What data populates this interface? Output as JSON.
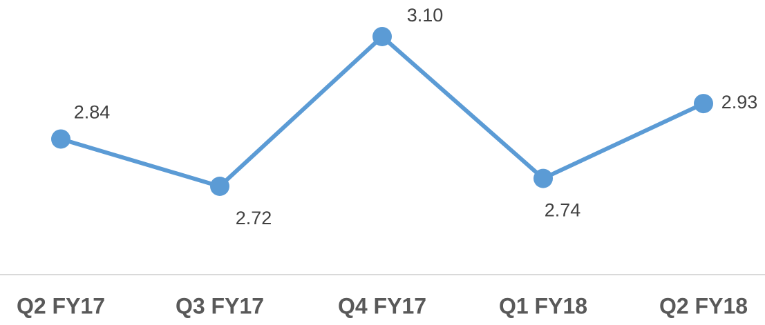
{
  "chart_data": {
    "type": "line",
    "categories": [
      "Q2 FY17",
      "Q3 FY17",
      "Q4 FY17",
      "Q1 FY18",
      "Q2 FY18"
    ],
    "series": [
      {
        "name": null,
        "color": "#5b9bd5",
        "values": [
          2.84,
          2.72,
          3.1,
          2.74,
          2.93
        ],
        "value_labels": [
          "2.84",
          "2.72",
          "3.10",
          "2.74",
          "2.93"
        ]
      }
    ]
  }
}
